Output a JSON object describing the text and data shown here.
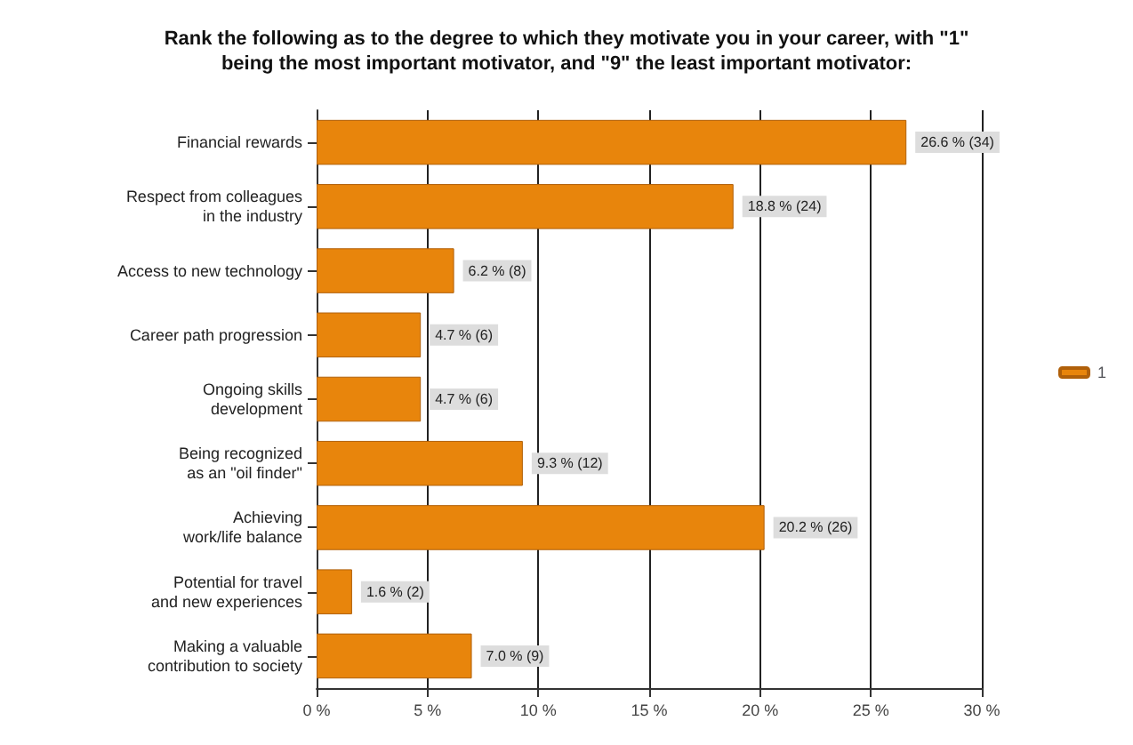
{
  "chart_data": {
    "type": "bar",
    "orientation": "horizontal",
    "title": "Rank the following as to the degree to which they motivate you in your career, with \"1\"\nbeing the most important motivator, and \"9\" the least important motivator:",
    "categories": [
      "Financial rewards",
      "Respect from colleagues\nin the industry",
      "Access to new technology",
      "Career path progression",
      "Ongoing skills\ndevelopment",
      "Being recognized\nas an \"oil finder\"",
      "Achieving\nwork/life balance",
      "Potential for travel\nand new experiences",
      "Making a valuable\ncontribution to society"
    ],
    "series": [
      {
        "name": "1",
        "color": "#e8850c",
        "values": [
          26.6,
          18.8,
          6.2,
          4.7,
          4.7,
          9.3,
          20.2,
          1.6,
          7.0
        ],
        "value_labels": [
          "26.6 % (34)",
          "18.8 % (24)",
          "6.2 % (8)",
          "4.7 % (6)",
          "4.7 % (6)",
          "9.3 % (12)",
          "20.2 % (26)",
          "1.6 % (2)",
          "7.0 % (9)"
        ]
      }
    ],
    "xlim": [
      0,
      30
    ],
    "xticks": [
      {
        "value": 0,
        "label": "0 %"
      },
      {
        "value": 5,
        "label": "5 %"
      },
      {
        "value": 10,
        "label": "10 %"
      },
      {
        "value": 15,
        "label": "15 %"
      },
      {
        "value": 20,
        "label": "20 %"
      },
      {
        "value": 25,
        "label": "25 %"
      },
      {
        "value": 30,
        "label": "30 %"
      }
    ],
    "grid": "x",
    "legend": "right"
  }
}
